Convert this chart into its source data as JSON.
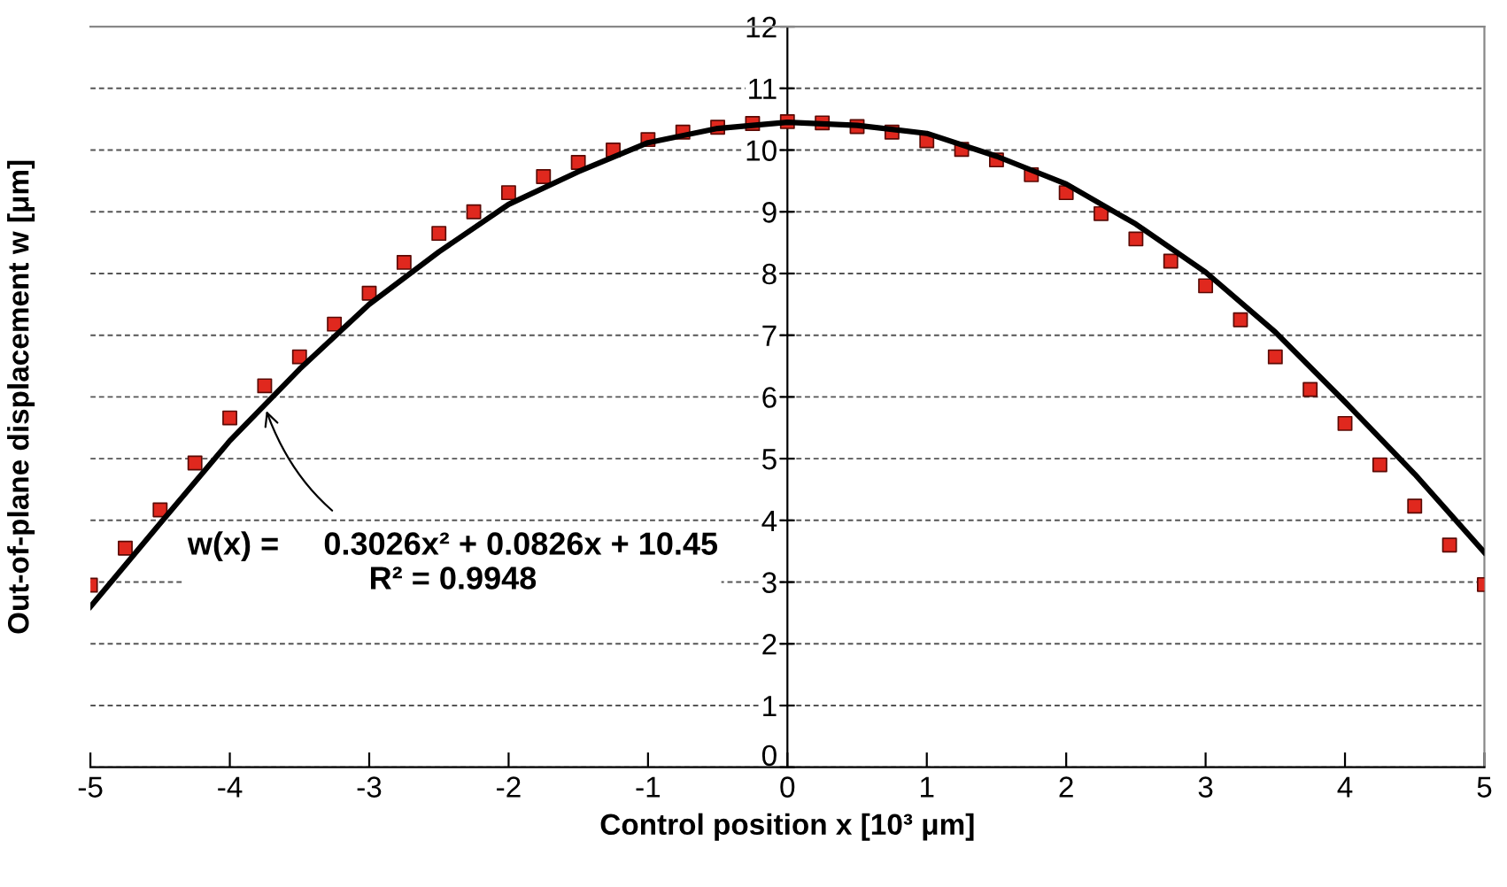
{
  "chart_data": {
    "type": "scatter",
    "xlabel": "Control position x [10³ μm]",
    "ylabel": "Out-of-plane displacement w [μm]",
    "xlim": [
      -5,
      5
    ],
    "xticks": [
      -5,
      -4,
      -3,
      -2,
      -1,
      0,
      1,
      2,
      3,
      4,
      5
    ],
    "ylim": [
      0,
      12
    ],
    "yticks": [
      0,
      1,
      2,
      3,
      4,
      5,
      6,
      7,
      8,
      9,
      10,
      11,
      12
    ],
    "grid": "y",
    "legend": false,
    "series": [
      {
        "color": "#e0281e",
        "marker": "square",
        "x": [
          -5,
          -4.75,
          -4.5,
          -4.25,
          -4,
          -3.75,
          -3.5,
          -3.25,
          -3,
          -2.75,
          -2.5,
          -2.25,
          -2,
          -1.75,
          -1.5,
          -1.25,
          -1,
          -0.75,
          -0.5,
          -0.25,
          0,
          0.25,
          0.5,
          0.75,
          1,
          1.25,
          1.5,
          1.75,
          2,
          2.25,
          2.5,
          2.75,
          3,
          3.25,
          3.5,
          3.75,
          4,
          4.25,
          4.5,
          4.75,
          5
        ],
        "values": [
          2.95,
          3.55,
          4.17,
          4.93,
          5.66,
          6.18,
          6.65,
          7.18,
          7.68,
          8.18,
          8.65,
          9.0,
          9.31,
          9.57,
          9.8,
          10.0,
          10.17,
          10.29,
          10.37,
          10.43,
          10.46,
          10.44,
          10.38,
          10.29,
          10.15,
          10.01,
          9.84,
          9.6,
          9.31,
          8.97,
          8.56,
          8.2,
          7.8,
          7.25,
          6.65,
          6.12,
          5.57,
          4.9,
          4.23,
          3.6,
          2.96
        ]
      },
      {
        "type": "line",
        "color": "#000000",
        "line_style": "solid",
        "x": [
          -5,
          -4.5,
          -4,
          -3.5,
          -3,
          -2.5,
          -2,
          -1.5,
          -1,
          -0.5,
          0,
          0.5,
          1,
          1.5,
          2,
          2.5,
          3,
          3.5,
          4,
          4.5,
          5
        ],
        "values": [
          2.6,
          3.95,
          5.29,
          6.45,
          7.5,
          8.35,
          9.12,
          9.65,
          10.12,
          10.35,
          10.45,
          10.4,
          10.27,
          9.9,
          9.45,
          8.8,
          8.02,
          7.05,
          5.92,
          4.75,
          3.48
        ]
      }
    ],
    "annotations": [
      {
        "text": "w(x) =     0.3026x² + 0.0826x + 10.45\nR² = 0.9948",
        "x": -3.75,
        "y": 5.85
      }
    ]
  }
}
